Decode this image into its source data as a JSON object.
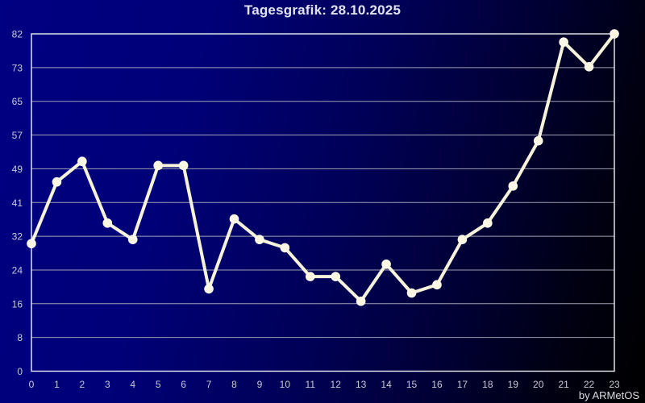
{
  "title": "Tagesgrafik: 28.10.2025",
  "credit": "by ARMetOS",
  "colors": {
    "background_start": "#000082",
    "background_end": "#000000",
    "frame": "#eef0f6",
    "gridline": "#9fa0b4",
    "line": "#f7f3da",
    "marker_fill": "#fbf7e2",
    "marker_stroke": "#fffdf0",
    "title_text": "#e3e3f2",
    "axis_text": "#c9c9d6",
    "credit_text": "#dcdce4"
  },
  "chart_data": {
    "type": "line",
    "title": "Tagesgrafik: 28.10.2025",
    "x": [
      0,
      1,
      2,
      3,
      4,
      5,
      6,
      7,
      8,
      9,
      10,
      11,
      12,
      13,
      14,
      15,
      16,
      17,
      18,
      19,
      20,
      21,
      22,
      23
    ],
    "x_tick_labels": [
      "0",
      "1",
      "2",
      "3",
      "4",
      "5",
      "6",
      "7",
      "8",
      "9",
      "10",
      "11",
      "12",
      "13",
      "14",
      "15",
      "16",
      "17",
      "18",
      "19",
      "20",
      "21",
      "22",
      "23"
    ],
    "values": [
      31,
      46,
      51,
      36,
      32,
      50,
      50,
      20,
      37,
      32,
      30,
      23,
      23,
      17,
      26,
      19,
      21,
      32,
      36,
      45,
      56,
      80,
      74,
      82
    ],
    "ylim": [
      0,
      82
    ],
    "ytick_labels": [
      "82",
      "73",
      "65",
      "57",
      "49",
      "41",
      "32",
      "24",
      "16",
      "8",
      "0"
    ],
    "xlabel": "",
    "ylabel": "",
    "grid": "horizontal-only",
    "legend": "none",
    "marker": "circle",
    "annotation": "by ARMetOS"
  }
}
